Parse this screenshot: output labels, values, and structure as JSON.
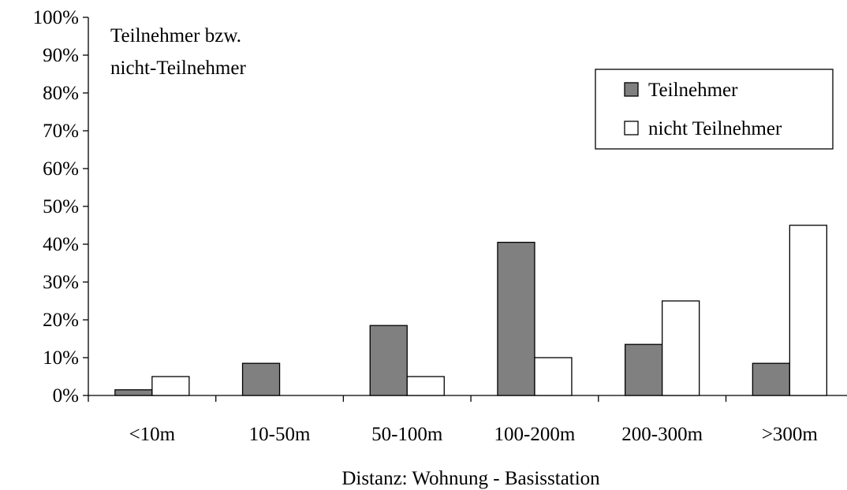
{
  "chart_data": {
    "type": "bar",
    "categories": [
      "<10m",
      "10-50m",
      "50-100m",
      "100-200m",
      "200-300m",
      ">300m"
    ],
    "series": [
      {
        "name": "Teilnehmer",
        "values": [
          1.5,
          8.5,
          18.5,
          40.5,
          13.5,
          8.5
        ],
        "color": "#808080"
      },
      {
        "name": "nicht Teilnehmer",
        "values": [
          5,
          0,
          5,
          10,
          25,
          45
        ],
        "color": "#ffffff"
      }
    ],
    "annotation_lines": [
      "Teilnehmer bzw.",
      "nicht-Teilnehmer"
    ],
    "xlabel": "Distanz: Wohnung - Basisstation",
    "ylabel": "",
    "ylim": [
      0,
      100
    ],
    "yticks": [
      "0%",
      "10%",
      "20%",
      "30%",
      "40%",
      "50%",
      "60%",
      "70%",
      "80%",
      "90%",
      "100%"
    ],
    "grid": false,
    "legend_position": "top-right"
  }
}
